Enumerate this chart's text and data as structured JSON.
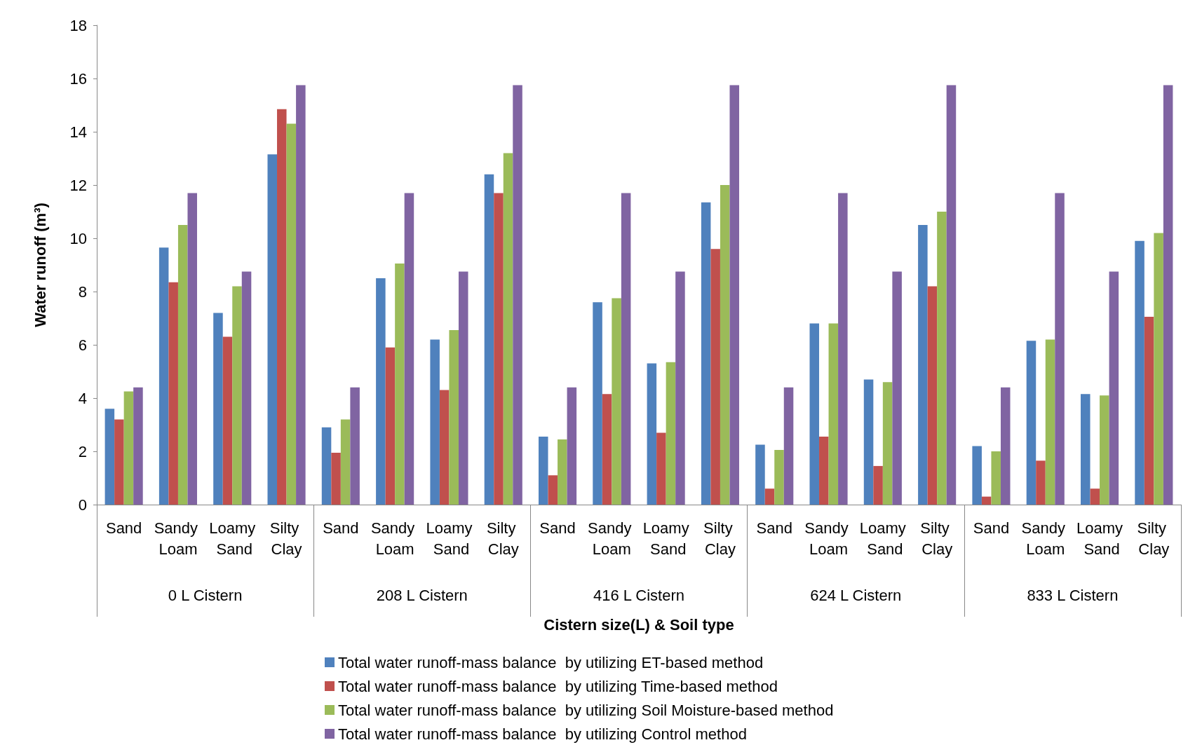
{
  "chart_data": {
    "type": "bar",
    "xlabel": "Cistern size(L) & Soil type",
    "ylabel": "Water runoff (m³)",
    "categories": [
      "Sand",
      "Sandy Loam",
      "Loamy Sand",
      "Silty Clay",
      "Sand",
      "Sandy Loam",
      "Loamy Sand",
      "Silty Clay",
      "Sand",
      "Sandy Loam",
      "Loamy Sand",
      "Silty Clay",
      "Sand",
      "Sandy Loam",
      "Loamy Sand",
      "Silty Clay",
      "Sand",
      "Sandy Loam",
      "Loamy Sand",
      "Silty Clay"
    ],
    "annotations": [
      "0 L Cistern",
      "208 L Cistern",
      "416 L Cistern",
      "624 L Cistern",
      "833 L Cistern"
    ],
    "series": [
      {
        "name": "Total water runoff-mass balance  by utilizing ET-based method",
        "color": "#4f81bd",
        "values": [
          3.6,
          9.65,
          7.2,
          13.15,
          2.9,
          8.5,
          6.2,
          12.4,
          2.55,
          7.6,
          5.3,
          11.35,
          2.25,
          6.8,
          4.7,
          10.5,
          2.2,
          6.15,
          4.15,
          9.9
        ]
      },
      {
        "name": "Total water runoff-mass balance  by utilizing Time-based method",
        "color": "#c0504d",
        "values": [
          3.2,
          8.35,
          6.3,
          14.85,
          1.95,
          5.9,
          4.3,
          11.7,
          1.1,
          4.15,
          2.7,
          9.6,
          0.6,
          2.55,
          1.45,
          8.2,
          0.3,
          1.65,
          0.6,
          7.05
        ]
      },
      {
        "name": "Total water runoff-mass balance  by utilizing Soil Moisture-based method",
        "color": "#9bbb59",
        "values": [
          4.25,
          10.5,
          8.2,
          14.3,
          3.2,
          9.05,
          6.55,
          13.2,
          2.45,
          7.75,
          5.35,
          12.0,
          2.05,
          6.8,
          4.6,
          11.0,
          2.0,
          6.2,
          4.1,
          10.2
        ]
      },
      {
        "name": "Total water runoff-mass balance  by utilizing Control method",
        "color": "#8064a2",
        "values": [
          4.4,
          11.7,
          8.75,
          15.75,
          4.4,
          11.7,
          8.75,
          15.75,
          4.4,
          11.7,
          8.75,
          15.75,
          4.4,
          11.7,
          8.75,
          15.75,
          4.4,
          11.7,
          8.75,
          15.75
        ]
      }
    ],
    "ylim": [
      0,
      18
    ],
    "yticks": [
      0,
      2,
      4,
      6,
      8,
      10,
      12,
      14,
      16,
      18
    ],
    "legend": "bottom"
  }
}
